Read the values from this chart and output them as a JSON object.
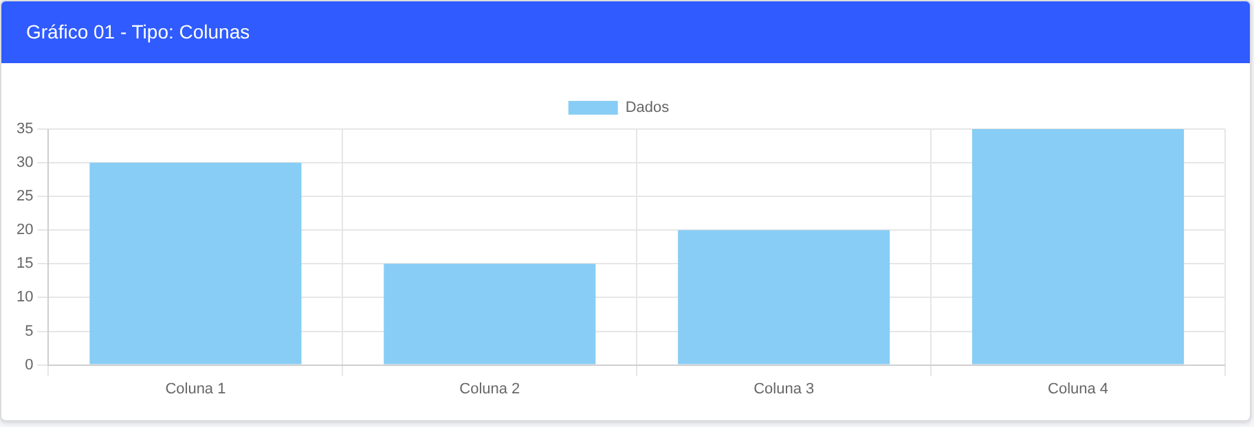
{
  "chart_data": {
    "type": "bar",
    "title": "Gráfico 01 - Tipo: Colunas",
    "categories": [
      "Coluna 1",
      "Coluna 2",
      "Coluna 3",
      "Coluna 4"
    ],
    "series": [
      {
        "name": "Dados",
        "color": "#87cdf5",
        "values": [
          30,
          15,
          20,
          35
        ]
      }
    ],
    "ylim": [
      0,
      35
    ],
    "yticks": [
      0,
      5,
      10,
      15,
      20,
      25,
      30,
      35
    ],
    "grid": true,
    "legend": "top"
  }
}
